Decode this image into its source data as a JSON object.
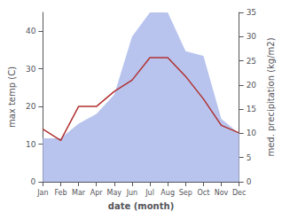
{
  "chart_data": {
    "type": "line",
    "categories": [
      "Jan",
      "Feb",
      "Mar",
      "Apr",
      "May",
      "Jun",
      "Jul",
      "Aug",
      "Sep",
      "Oct",
      "Nov",
      "Dec"
    ],
    "xlabel": "date (month)",
    "ylabel": "max temp (C)",
    "y2label": "med. precipitation (kg/m2)",
    "series": [
      {
        "type": "area",
        "color": "#b8c4ee",
        "axis": "y2",
        "values": [
          9,
          9,
          12,
          14,
          18,
          30,
          35,
          35,
          27,
          26,
          13,
          10
        ]
      },
      {
        "type": "line",
        "color": "#b03030",
        "values": [
          14,
          11,
          20,
          20,
          24,
          27,
          33,
          33,
          28,
          22,
          15,
          13
        ]
      }
    ],
    "ylim": [
      0,
      45
    ],
    "yticks": [
      0,
      10,
      20,
      30,
      40
    ],
    "y2lim": [
      0,
      35
    ],
    "y2ticks": [
      0,
      5,
      10,
      15,
      20,
      25,
      30,
      35
    ],
    "grid": false
  }
}
